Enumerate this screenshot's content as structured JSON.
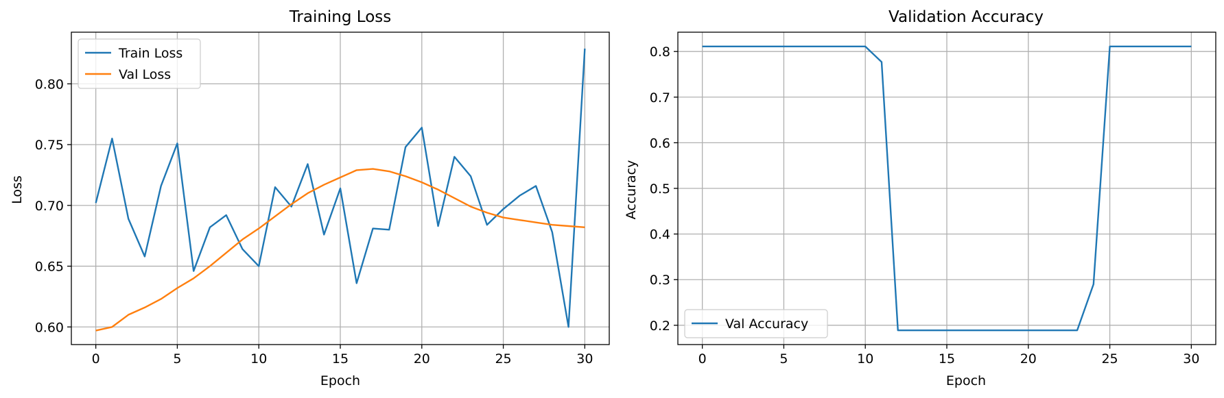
{
  "colors": {
    "train": "#1f77b4",
    "val": "#ff7f0e",
    "acc": "#1f77b4",
    "grid": "#b0b0b0"
  },
  "chart_data": [
    {
      "type": "line",
      "title": "Training Loss",
      "xlabel": "Epoch",
      "ylabel": "Loss",
      "xlim": [
        -1.5,
        31.5
      ],
      "ylim": [
        0.5855,
        0.8425
      ],
      "xticks": [
        0,
        5,
        10,
        15,
        20,
        25,
        30
      ],
      "xtick_labels": [
        "0",
        "5",
        "10",
        "15",
        "20",
        "25",
        "30"
      ],
      "yticks": [
        0.6,
        0.65,
        0.7,
        0.75,
        0.8
      ],
      "ytick_labels": [
        "0.60",
        "0.65",
        "0.70",
        "0.75",
        "0.80"
      ],
      "grid": true,
      "legend_position": "top-left",
      "x": [
        0,
        1,
        2,
        3,
        4,
        5,
        6,
        7,
        8,
        9,
        10,
        11,
        12,
        13,
        14,
        15,
        16,
        17,
        18,
        19,
        20,
        21,
        22,
        23,
        24,
        25,
        26,
        27,
        28,
        29,
        30
      ],
      "series": [
        {
          "name": "Train Loss",
          "color": "#1f77b4",
          "values": [
            0.702,
            0.755,
            0.689,
            0.658,
            0.716,
            0.751,
            0.646,
            0.682,
            0.692,
            0.664,
            0.65,
            0.715,
            0.699,
            0.734,
            0.676,
            0.714,
            0.636,
            0.681,
            0.68,
            0.748,
            0.764,
            0.683,
            0.74,
            0.724,
            0.684,
            0.697,
            0.708,
            0.716,
            0.678,
            0.6,
            0.829
          ]
        },
        {
          "name": "Val Loss",
          "color": "#ff7f0e",
          "values": [
            0.597,
            0.6,
            0.61,
            0.616,
            0.623,
            0.632,
            0.64,
            0.65,
            0.661,
            0.672,
            0.681,
            0.691,
            0.701,
            0.71,
            0.717,
            0.723,
            0.729,
            0.73,
            0.728,
            0.724,
            0.719,
            0.713,
            0.706,
            0.699,
            0.694,
            0.69,
            0.688,
            0.686,
            0.684,
            0.683,
            0.682
          ]
        }
      ]
    },
    {
      "type": "line",
      "title": "Validation Accuracy",
      "xlabel": "Epoch",
      "ylabel": "Accuracy",
      "xlim": [
        -1.5,
        31.5
      ],
      "ylim": [
        0.1577,
        0.8423
      ],
      "xticks": [
        0,
        5,
        10,
        15,
        20,
        25,
        30
      ],
      "xtick_labels": [
        "0",
        "5",
        "10",
        "15",
        "20",
        "25",
        "30"
      ],
      "yticks": [
        0.2,
        0.3,
        0.4,
        0.5,
        0.6,
        0.7,
        0.8
      ],
      "ytick_labels": [
        "0.2",
        "0.3",
        "0.4",
        "0.5",
        "0.6",
        "0.7",
        "0.8"
      ],
      "grid": true,
      "legend_position": "bottom-left",
      "x": [
        0,
        1,
        2,
        3,
        4,
        5,
        6,
        7,
        8,
        9,
        10,
        11,
        12,
        13,
        14,
        15,
        16,
        17,
        18,
        19,
        20,
        21,
        22,
        23,
        24,
        25,
        26,
        27,
        28,
        29,
        30
      ],
      "series": [
        {
          "name": "Val Accuracy",
          "color": "#1f77b4",
          "values": [
            0.811,
            0.811,
            0.811,
            0.811,
            0.811,
            0.811,
            0.811,
            0.811,
            0.811,
            0.811,
            0.811,
            0.777,
            0.189,
            0.189,
            0.189,
            0.189,
            0.189,
            0.189,
            0.189,
            0.189,
            0.189,
            0.189,
            0.189,
            0.189,
            0.29,
            0.811,
            0.811,
            0.811,
            0.811,
            0.811,
            0.811
          ]
        }
      ]
    }
  ]
}
